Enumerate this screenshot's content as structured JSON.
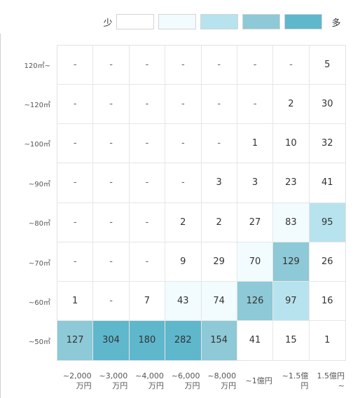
{
  "legend": {
    "low_label": "少",
    "high_label": "多",
    "levels": [
      "#ffffff",
      "#f2fbfd",
      "#b6e3ee",
      "#8dc9d6",
      "#5fb7cc"
    ]
  },
  "row_labels": [
    "120㎡~",
    "~120㎡",
    "~100㎡",
    "~90㎡",
    "~80㎡",
    "~70㎡",
    "~60㎡",
    "~50㎡"
  ],
  "col_labels": [
    "~2,000\n万円",
    "~3,000\n万円",
    "~4,000\n万円",
    "~6,000\n万円",
    "~8,000\n万円",
    "~1億円",
    "~1.5億\n円",
    "1.5億円\n~"
  ],
  "rows": [
    {
      "cells": [
        {
          "v": "-",
          "level": 0
        },
        {
          "v": "-",
          "level": 0
        },
        {
          "v": "-",
          "level": 0
        },
        {
          "v": "-",
          "level": 0
        },
        {
          "v": "-",
          "level": 0
        },
        {
          "v": "-",
          "level": 0
        },
        {
          "v": "-",
          "level": 0
        },
        {
          "v": "5",
          "level": 0
        }
      ]
    },
    {
      "cells": [
        {
          "v": "-",
          "level": 0
        },
        {
          "v": "-",
          "level": 0
        },
        {
          "v": "-",
          "level": 0
        },
        {
          "v": "-",
          "level": 0
        },
        {
          "v": "-",
          "level": 0
        },
        {
          "v": "-",
          "level": 0
        },
        {
          "v": "2",
          "level": 0
        },
        {
          "v": "30",
          "level": 0
        }
      ]
    },
    {
      "cells": [
        {
          "v": "-",
          "level": 0
        },
        {
          "v": "-",
          "level": 0
        },
        {
          "v": "-",
          "level": 0
        },
        {
          "v": "-",
          "level": 0
        },
        {
          "v": "-",
          "level": 0
        },
        {
          "v": "1",
          "level": 0
        },
        {
          "v": "10",
          "level": 0
        },
        {
          "v": "32",
          "level": 0
        }
      ]
    },
    {
      "cells": [
        {
          "v": "-",
          "level": 0
        },
        {
          "v": "-",
          "level": 0
        },
        {
          "v": "-",
          "level": 0
        },
        {
          "v": "-",
          "level": 0
        },
        {
          "v": "3",
          "level": 0
        },
        {
          "v": "3",
          "level": 0
        },
        {
          "v": "23",
          "level": 0
        },
        {
          "v": "41",
          "level": 0
        }
      ]
    },
    {
      "cells": [
        {
          "v": "-",
          "level": 0
        },
        {
          "v": "-",
          "level": 0
        },
        {
          "v": "-",
          "level": 0
        },
        {
          "v": "2",
          "level": 0
        },
        {
          "v": "2",
          "level": 0
        },
        {
          "v": "27",
          "level": 0
        },
        {
          "v": "83",
          "level": 1
        },
        {
          "v": "95",
          "level": 2
        }
      ]
    },
    {
      "cells": [
        {
          "v": "-",
          "level": 0
        },
        {
          "v": "-",
          "level": 0
        },
        {
          "v": "-",
          "level": 0
        },
        {
          "v": "9",
          "level": 0
        },
        {
          "v": "29",
          "level": 0
        },
        {
          "v": "70",
          "level": 1
        },
        {
          "v": "129",
          "level": 3
        },
        {
          "v": "26",
          "level": 0
        }
      ]
    },
    {
      "cells": [
        {
          "v": "1",
          "level": 0
        },
        {
          "v": "-",
          "level": 0
        },
        {
          "v": "7",
          "level": 0
        },
        {
          "v": "43",
          "level": 1
        },
        {
          "v": "74",
          "level": 1
        },
        {
          "v": "126",
          "level": 3
        },
        {
          "v": "97",
          "level": 2
        },
        {
          "v": "16",
          "level": 0
        }
      ]
    },
    {
      "cells": [
        {
          "v": "127",
          "level": 3
        },
        {
          "v": "304",
          "level": 4
        },
        {
          "v": "180",
          "level": 4
        },
        {
          "v": "282",
          "level": 4
        },
        {
          "v": "154",
          "level": 3
        },
        {
          "v": "41",
          "level": 0
        },
        {
          "v": "15",
          "level": 0
        },
        {
          "v": "1",
          "level": 0
        }
      ]
    }
  ]
}
